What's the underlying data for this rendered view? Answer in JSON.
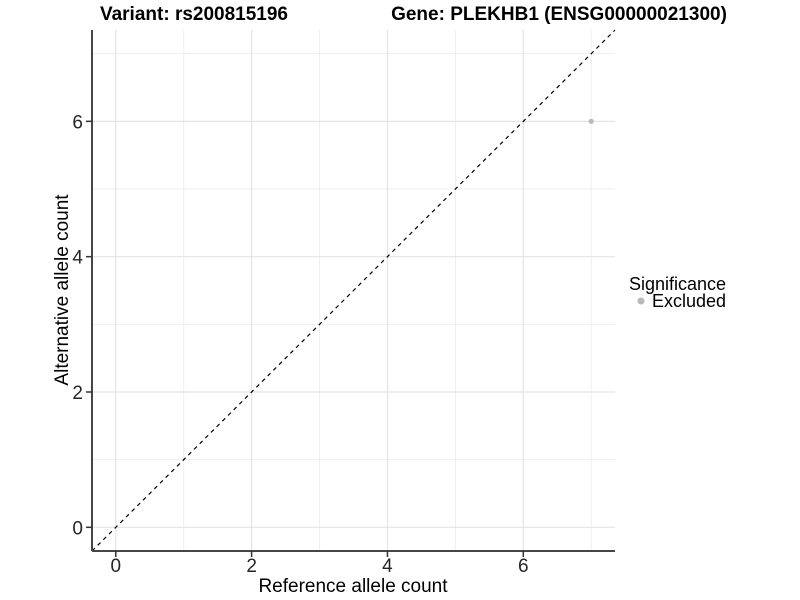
{
  "titles": {
    "left": "Variant: rs200815196",
    "right": "Gene: PLEKHB1 (ENSG00000021300)"
  },
  "legend": {
    "title": "Significance",
    "items": [
      {
        "label": "Excluded",
        "color": "#b9b9b9"
      }
    ]
  },
  "chart_data": {
    "type": "scatter",
    "title_left": "Variant: rs200815196",
    "title_right": "Gene: PLEKHB1 (ENSG00000021300)",
    "xlabel": "Reference allele count",
    "ylabel": "Alternative allele count",
    "xlim": [
      -0.35,
      7.35
    ],
    "ylim": [
      -0.35,
      7.35
    ],
    "x_ticks": [
      0,
      2,
      4,
      6
    ],
    "y_ticks": [
      0,
      2,
      4,
      6
    ],
    "x_minor": [
      1,
      3,
      5,
      7
    ],
    "y_minor": [
      1,
      3,
      5,
      7
    ],
    "series": [
      {
        "name": "Excluded",
        "color": "#b9b9b9",
        "points": [
          {
            "x": 7,
            "y": 6
          }
        ]
      }
    ],
    "reference_line": {
      "kind": "identity y=x",
      "style": "dashed",
      "color": "#000000"
    },
    "grid": true,
    "legend_position": "right",
    "legend_title": "Significance"
  },
  "colors": {
    "background": "#ffffff",
    "grid_major": "#e4e4e4",
    "grid_minor": "#efefef",
    "axis_line": "#464646",
    "tick": "#333333",
    "point": "#b9b9b9"
  }
}
